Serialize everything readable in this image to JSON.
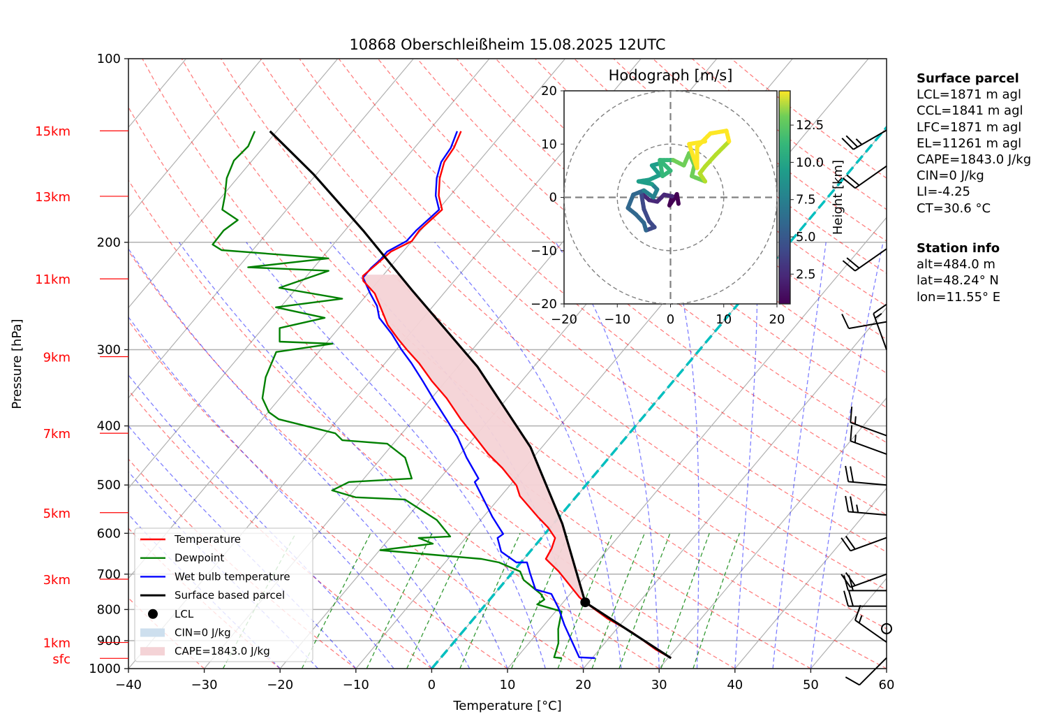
{
  "chart_data": {
    "type": "line",
    "subtype": "skew-t log-p diagram",
    "title": "10868 Oberschleißheim 15.08.2025 12UTC",
    "xlabel": "Temperature [°C]",
    "ylabel": "Pressure [hPa]",
    "xlim": [
      -40,
      60
    ],
    "ylim": [
      1000,
      100
    ],
    "x_ticks": [
      -40,
      -30,
      -20,
      -10,
      0,
      10,
      20,
      30,
      40,
      50,
      60
    ],
    "x_tick_labels": [
      "−40",
      "−30",
      "−20",
      "−10",
      "0",
      "10",
      "20",
      "30",
      "40",
      "50",
      "60"
    ],
    "y_ticks": [
      100,
      200,
      300,
      400,
      500,
      600,
      700,
      800,
      900,
      1000
    ],
    "y_tick_labels": [
      "100",
      "200",
      "300",
      "400",
      "500",
      "600",
      "700",
      "800",
      "900",
      "1000"
    ],
    "grid": true,
    "height_markers": {
      "color": "#ff0000",
      "items": [
        {
          "label": "15km",
          "p": 131.3
        },
        {
          "label": "13km",
          "p": 168.1
        },
        {
          "label": "11km",
          "p": 229.6
        },
        {
          "label": "9km",
          "p": 308.0
        },
        {
          "label": "7km",
          "p": 411.3
        },
        {
          "label": "5km",
          "p": 555.0
        },
        {
          "label": "3km",
          "p": 713.5
        },
        {
          "label": "1km",
          "p": 906.0
        },
        {
          "label": "sfc",
          "p": 962.0
        }
      ]
    },
    "series": [
      {
        "name": "Temperature",
        "color": "#ff0000",
        "points": [
          [
            131.5,
            -55.7
          ],
          [
            140,
            -54.8
          ],
          [
            147.7,
            -54.5
          ],
          [
            157.0,
            -53.3
          ],
          [
            167.7,
            -51.5
          ],
          [
            176.8,
            -49.5
          ],
          [
            191.3,
            -50.2
          ],
          [
            199.1,
            -50.0
          ],
          [
            207.2,
            -51.6
          ],
          [
            217.2,
            -52.1
          ],
          [
            227.1,
            -52.6
          ],
          [
            231.4,
            -52.0
          ],
          [
            242.6,
            -49.1
          ],
          [
            254.4,
            -47.0
          ],
          [
            273.2,
            -43.9
          ],
          [
            288.0,
            -41.0
          ],
          [
            299.6,
            -38.7
          ],
          [
            315.8,
            -35.5
          ],
          [
            337.4,
            -31.9
          ],
          [
            360.3,
            -28.0
          ],
          [
            390.1,
            -23.8
          ],
          [
            416.7,
            -20.0
          ],
          [
            445.0,
            -16.3
          ],
          [
            469.1,
            -12.9
          ],
          [
            501.1,
            -9.1
          ],
          [
            521.3,
            -7.5
          ],
          [
            564.1,
            -2.8
          ],
          [
            586.9,
            -0.3
          ],
          [
            610.6,
            1.8
          ],
          [
            635.3,
            2.5
          ],
          [
            661.0,
            2.9
          ],
          [
            693.1,
            6.0
          ],
          [
            764.2,
            11.6
          ],
          [
            778.5,
            12.9
          ],
          [
            827.4,
            17.6
          ],
          [
            871.8,
            22.4
          ],
          [
            931.2,
            27.5
          ],
          [
            961.2,
            30.4
          ]
        ]
      },
      {
        "name": "Dewpoint",
        "color": "#008000",
        "points": [
          [
            131.5,
            -82.9
          ],
          [
            139.2,
            -82.1
          ],
          [
            146.9,
            -82.4
          ],
          [
            157.0,
            -81.4
          ],
          [
            167.7,
            -79.7
          ],
          [
            176.8,
            -78.5
          ],
          [
            183.9,
            -75.3
          ],
          [
            191.3,
            -76.0
          ],
          [
            201.7,
            -75.9
          ],
          [
            206.0,
            -74.1
          ],
          [
            212.5,
            -59.1
          ],
          [
            219.8,
            -68.7
          ],
          [
            222.7,
            -57.7
          ],
          [
            237.5,
            -62.3
          ],
          [
            247.5,
            -52.8
          ],
          [
            255.6,
            -60.6
          ],
          [
            266.0,
            -53.0
          ],
          [
            276.5,
            -57.8
          ],
          [
            291.0,
            -56.3
          ],
          [
            293.3,
            -49.1
          ],
          [
            302.6,
            -55.6
          ],
          [
            332.8,
            -54.2
          ],
          [
            360.3,
            -52.3
          ],
          [
            379.8,
            -49.9
          ],
          [
            390.1,
            -47.8
          ],
          [
            411.3,
            -38.8
          ],
          [
            422.2,
            -37.1
          ],
          [
            427.8,
            -30.8
          ],
          [
            450.8,
            -26.9
          ],
          [
            487.9,
            -23.7
          ],
          [
            494.4,
            -31.6
          ],
          [
            510.2,
            -32.9
          ],
          [
            523.8,
            -29.0
          ],
          [
            528.0,
            -22.3
          ],
          [
            570.7,
            -15.8
          ],
          [
            607.3,
            -12.2
          ],
          [
            610.6,
            -16.2
          ],
          [
            624.0,
            -13.7
          ],
          [
            639.5,
            -19.9
          ],
          [
            661.0,
            -5.6
          ],
          [
            669.7,
            -2.9
          ],
          [
            693.1,
            0.9
          ],
          [
            715.5,
            2.3
          ],
          [
            754.3,
            6.1
          ],
          [
            770.4,
            7.2
          ],
          [
            784.8,
            6.8
          ],
          [
            805.9,
            10.8
          ],
          [
            861.4,
            12.3
          ],
          [
            908.6,
            13.9
          ],
          [
            958.2,
            14.9
          ],
          [
            961.2,
            16.0
          ]
        ]
      },
      {
        "name": "Wet bulb temperature",
        "color": "#0000ff",
        "points": [
          [
            131.5,
            -56.2
          ],
          [
            140,
            -55.2
          ],
          [
            147.7,
            -54.9
          ],
          [
            157.0,
            -53.7
          ],
          [
            167.7,
            -51.9
          ],
          [
            176.8,
            -49.9
          ],
          [
            191.3,
            -50.6
          ],
          [
            199.1,
            -50.7
          ],
          [
            207.2,
            -52.1
          ],
          [
            213.5,
            -52.1
          ],
          [
            220.4,
            -52.4
          ],
          [
            228.5,
            -52.4
          ],
          [
            242.6,
            -49.7
          ],
          [
            254.4,
            -47.4
          ],
          [
            266.0,
            -45.8
          ],
          [
            283.0,
            -42.3
          ],
          [
            299.6,
            -39.4
          ],
          [
            315.8,
            -36.5
          ],
          [
            337.4,
            -33.1
          ],
          [
            360.3,
            -29.8
          ],
          [
            390.1,
            -25.7
          ],
          [
            416.7,
            -22.3
          ],
          [
            450.8,
            -18.8
          ],
          [
            487.9,
            -14.9
          ],
          [
            494.4,
            -15.0
          ],
          [
            521.3,
            -12.5
          ],
          [
            564.1,
            -8.8
          ],
          [
            601.5,
            -5.5
          ],
          [
            610.6,
            -5.8
          ],
          [
            643.0,
            -3.8
          ],
          [
            669.7,
            -0.6
          ],
          [
            669.7,
            0.8
          ],
          [
            697.6,
            2.4
          ],
          [
            741.4,
            4.9
          ],
          [
            754.3,
            7.5
          ],
          [
            795.3,
            10.0
          ],
          [
            848.8,
            12.7
          ],
          [
            958.2,
            18.2
          ],
          [
            961.2,
            20.4
          ]
        ]
      },
      {
        "name": "Surface based parcel",
        "color": "#000000",
        "points": [
          [
            131.5,
            -80.9
          ],
          [
            154.9,
            -70.3
          ],
          [
            191.3,
            -57.6
          ],
          [
            239.4,
            -44.6
          ],
          [
            320.1,
            -27.4
          ],
          [
            433.5,
            -11.5
          ],
          [
            579.1,
            1.2
          ],
          [
            778.5,
            12.9
          ],
          [
            961.2,
            30.4
          ]
        ]
      }
    ],
    "lcl": {
      "name": "LCL",
      "p": 778.5,
      "t": 12.9,
      "color": "#000000"
    },
    "cin": {
      "label": "CIN=0 J/kg",
      "color": "#cddfee"
    },
    "cape": {
      "label": "CAPE=1843.0 J/kg",
      "color": "#f4d3d6"
    },
    "zero_isotherm": {
      "t": 0,
      "color": "#00bfbf"
    },
    "legend": {
      "position": "lower-left",
      "entries": [
        "Temperature",
        "Dewpoint",
        "Wet bulb temperature",
        "Surface based parcel",
        "LCL",
        "CIN=0 J/kg",
        "CAPE=1843.0 J/kg"
      ]
    },
    "wind_barbs": [
      {
        "p": 131,
        "dir": 240,
        "kt": 25
      },
      {
        "p": 150,
        "dir": 235,
        "kt": 20
      },
      {
        "p": 205,
        "dir": 235,
        "kt": 20
      },
      {
        "p": 270,
        "dir": 260,
        "kt": 10
      },
      {
        "p": 300,
        "dir": 340,
        "kt": 15
      },
      {
        "p": 415,
        "dir": 290,
        "kt": 15
      },
      {
        "p": 445,
        "dir": 290,
        "kt": 15
      },
      {
        "p": 500,
        "dir": 275,
        "kt": 20
      },
      {
        "p": 560,
        "dir": 275,
        "kt": 25
      },
      {
        "p": 610,
        "dir": 250,
        "kt": 20
      },
      {
        "p": 700,
        "dir": 250,
        "kt": 20
      },
      {
        "p": 745,
        "dir": 270,
        "kt": 20
      },
      {
        "p": 790,
        "dir": 270,
        "kt": 20
      },
      {
        "p": 860,
        "dir": 0,
        "kt": 0
      },
      {
        "p": 905,
        "dir": 305,
        "kt": 15
      },
      {
        "p": 960,
        "dir": 225,
        "kt": 10
      }
    ],
    "hodograph": {
      "title": "Hodograph [m/s]",
      "xlim": [
        -20,
        20
      ],
      "ylim": [
        -20,
        20
      ],
      "ticks": [
        -20,
        -10,
        0,
        10,
        20
      ],
      "tick_labels": [
        "−20",
        "−10",
        "0",
        "10",
        "20"
      ],
      "rings": [
        10,
        20
      ],
      "colorbar": {
        "label": "Height [km]",
        "range": [
          0.5,
          14.8
        ],
        "ticks": [
          2.5,
          5.0,
          7.5,
          10.0,
          12.5
        ],
        "tick_labels": [
          "2.5",
          "5.0",
          "7.5",
          "10.0",
          "12.5"
        ],
        "colormap": "viridis"
      },
      "points": [
        [
          0.5,
          1.5,
          -1.2
        ],
        [
          1.0,
          1.2,
          0.6
        ],
        [
          1.4,
          0.5,
          -0.5
        ],
        [
          1.8,
          -0.2,
          -1.5
        ],
        [
          2.1,
          0.3,
          0.2
        ],
        [
          2.4,
          -1.2,
          0.5
        ],
        [
          2.8,
          -2.5,
          -0.8
        ],
        [
          3.1,
          -4.0,
          -0.5
        ],
        [
          3.4,
          -5.5,
          0.8
        ],
        [
          3.8,
          -5.0,
          -2.2
        ],
        [
          4.2,
          -4.0,
          -4.5
        ],
        [
          4.5,
          -3.0,
          -5.6
        ],
        [
          4.9,
          -4.6,
          -6.2
        ],
        [
          5.2,
          -5.0,
          -4.8
        ],
        [
          5.5,
          -6.5,
          -3.2
        ],
        [
          5.9,
          -8.0,
          -2.0
        ],
        [
          6.2,
          -7.0,
          0.5
        ],
        [
          6.6,
          -5.0,
          1.3
        ],
        [
          7.0,
          -3.2,
          0.0
        ],
        [
          7.3,
          -2.5,
          1.5
        ],
        [
          7.7,
          -3.5,
          2.5
        ],
        [
          8.0,
          -6.0,
          3.0
        ],
        [
          8.3,
          -4.0,
          3.3
        ],
        [
          8.6,
          -2.0,
          4.2
        ],
        [
          9.0,
          -3.5,
          6.0
        ],
        [
          9.3,
          -1.5,
          6.5
        ],
        [
          9.6,
          0.0,
          5.0
        ],
        [
          9.9,
          -1.5,
          4.0
        ],
        [
          10.2,
          -2.0,
          7.0
        ],
        [
          10.6,
          0.5,
          7.0
        ],
        [
          11.0,
          2.5,
          6.0
        ],
        [
          11.3,
          3.5,
          8.3
        ],
        [
          11.6,
          4.5,
          6.0
        ],
        [
          11.9,
          4.0,
          4.0
        ],
        [
          12.2,
          6.5,
          3.0
        ],
        [
          12.5,
          5.5,
          4.5
        ],
        [
          12.8,
          6.5,
          5.8
        ],
        [
          13.1,
          8.5,
          8.0
        ],
        [
          13.4,
          11.0,
          10.5
        ],
        [
          13.7,
          10.5,
          12.5
        ],
        [
          14.0,
          7.5,
          12.0
        ],
        [
          14.3,
          5.0,
          9.5
        ],
        [
          14.6,
          5.0,
          5.5
        ],
        [
          14.8,
          3.5,
          10.0
        ],
        [
          15.0,
          6.5,
          10.5
        ]
      ]
    }
  },
  "info_panel": {
    "surface_parcel": {
      "title": "Surface parcel",
      "lines": [
        "LCL=1871 m agl",
        "CCL=1841 m agl",
        "LFC=1871 m agl",
        "EL=11261 m agl",
        "CAPE=1843.0 J/kg",
        "CIN=0 J/kg",
        "LI=-4.25",
        "CT=30.6 °C"
      ]
    },
    "station_info": {
      "title": "Station info",
      "lines": [
        "alt=484.0 m",
        "lat=48.24° N",
        "lon=11.55° E"
      ]
    }
  }
}
